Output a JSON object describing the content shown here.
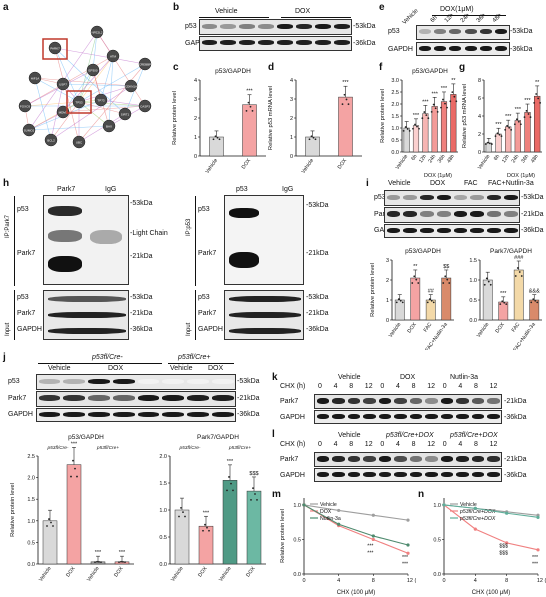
{
  "panels": {
    "a": {
      "label": "a"
    },
    "b": {
      "label": "b",
      "groups": [
        "Vehicle",
        "DOX"
      ],
      "rows": [
        "p53",
        "GAPDH"
      ],
      "kda": [
        "-53kDa",
        "-36kDa"
      ]
    },
    "c": {
      "label": "c",
      "ylabel": "Relative protein level",
      "title": "p53/GAPDH",
      "ticks": [
        "0",
        "1",
        "2",
        "3",
        "4"
      ],
      "cats": [
        "Vehicle",
        "DOX"
      ],
      "sig": "***"
    },
    "d": {
      "label": "d",
      "ylabel": "Relative p53 mRNA level",
      "ticks": [
        "0",
        "1",
        "2",
        "3",
        "4"
      ],
      "cats": [
        "Vehicle",
        "DOX"
      ],
      "sig": "***"
    },
    "e": {
      "label": "e",
      "groups": [
        "Vehicle",
        "DOX(1μM)"
      ],
      "times": [
        "6h",
        "12h",
        "24h",
        "36h",
        "48h"
      ],
      "rows": [
        "p53",
        "GAPDH"
      ],
      "kda": [
        "-53kDa",
        "-36kDa"
      ]
    },
    "f": {
      "label": "f",
      "title": "p53/GAPDH",
      "ylabel": "Relative protein level",
      "ticks": [
        "0.0",
        "0.5",
        "1.0",
        "1.5",
        "2.0",
        "2.5",
        "3.0"
      ],
      "cats": [
        "Vehicle",
        "6h",
        "12h",
        "24h",
        "36h",
        "48h"
      ],
      "xlabel": "DOX (1μM)",
      "sig": [
        "***",
        "***",
        "***",
        "***",
        "**"
      ]
    },
    "g": {
      "label": "g",
      "ylabel": "Relative p53 mRNA level",
      "ticks": [
        "0",
        "2",
        "4",
        "6",
        "8"
      ],
      "cats": [
        "Vehicle",
        "6h",
        "12h",
        "24h",
        "36h",
        "48h"
      ],
      "xlabel": "DOX (1μM)",
      "sig": [
        "***",
        "***",
        "***",
        "***",
        "**"
      ]
    },
    "h": {
      "label": "h",
      "left": {
        "ip": "IP:Park7",
        "cols": [
          "Park7",
          "IgG"
        ],
        "rows": [
          "p53",
          "Park7"
        ],
        "kda": [
          "-53kDa",
          "-Light Chain",
          "-21kDa"
        ],
        "input": "Input",
        "input_rows": [
          "p53",
          "Park7",
          "GAPDH"
        ],
        "input_kda": [
          "-53kDa",
          "-21kDa",
          "-36kDa"
        ]
      },
      "right": {
        "ip": "IP:p53",
        "cols": [
          "p53",
          "IgG"
        ],
        "rows": [
          "p53",
          "Park7"
        ],
        "kda": [
          "-53kDa",
          "-21kDa"
        ],
        "input": "Input",
        "input_rows": [
          "p53",
          "Park7",
          "GAPDH"
        ],
        "input_kda": [
          "-53kDa",
          "-21kDa",
          "-36kDa"
        ]
      }
    },
    "i": {
      "label": "i",
      "groups": [
        "Vehicle",
        "DOX",
        "FAC",
        "FAC+Nutlin-3a"
      ],
      "rows": [
        "p53",
        "Park7",
        "GAPDH"
      ],
      "kda": [
        "-53kDa",
        "-21kDa",
        "-36kDa"
      ],
      "chart1": {
        "title": "p53/GAPDH",
        "ylabel": "Relative protein level",
        "ticks": [
          "0",
          "1",
          "2",
          "3"
        ],
        "cats": [
          "Vehicle",
          "DOX",
          "FAC",
          "FAC+Nutlin-3a"
        ],
        "sig": [
          "**",
          "##",
          "$$"
        ]
      },
      "chart2": {
        "title": "Park7/GAPDH",
        "ticks": [
          "0.0",
          "0.5",
          "1.0",
          "1.5"
        ],
        "cats": [
          "Vehicle",
          "DOX",
          "FAC",
          "FAC+Nutlin-3a"
        ],
        "sig": [
          "***",
          "###",
          "&&&"
        ]
      }
    },
    "j": {
      "label": "j",
      "g1": "p53fl/Cre-",
      "g2": "p53fl/Cre+",
      "groups": [
        "Vehicle",
        "DOX",
        "Vehicle",
        "DOX"
      ],
      "rows": [
        "p53",
        "Park7",
        "GAPDH"
      ],
      "kda": [
        "-53kDa",
        "-21kDa",
        "-36kDa"
      ],
      "chart1": {
        "title": "p53/GAPDH",
        "sub1": "p53fl/Cre-",
        "sub2": "p53fl/Cre+",
        "ylabel": "Relative protein level",
        "ticks": [
          "0.0",
          "0.5",
          "1.0",
          "1.5",
          "2.0",
          "2.5"
        ],
        "cats": [
          "Vehicle",
          "DOX",
          "Vehicle",
          "DOX"
        ],
        "sig": [
          "***",
          "***",
          "***",
          "$$$"
        ]
      },
      "chart2": {
        "title": "Park7/GAPDH",
        "sub1": "p53fl/Cre-",
        "sub2": "p53fl/Cre+",
        "ticks": [
          "0.0",
          "0.5",
          "1.0",
          "1.5",
          "2.0"
        ],
        "cats": [
          "Vehicle",
          "DOX",
          "Vehicle",
          "DOX"
        ],
        "sig": [
          "***",
          "***",
          "$$$"
        ]
      }
    },
    "k": {
      "label": "k",
      "chx": "CHX (h)",
      "groups": [
        "Vehicle",
        "DOX",
        "Nutlin-3a"
      ],
      "times": [
        "0",
        "4",
        "8",
        "12",
        "0",
        "4",
        "8",
        "12",
        "0",
        "4",
        "8",
        "12"
      ],
      "rows": [
        "Park7",
        "GAPDH"
      ],
      "kda": [
        "-21kDa",
        "-36kDa"
      ]
    },
    "l": {
      "label": "l",
      "chx": "CHX (h)",
      "groups": [
        "Vehicle",
        "p53fl/Cre+DOX",
        "p53fl/Cre+DOX"
      ],
      "times": [
        "0",
        "4",
        "8",
        "12",
        "0",
        "4",
        "8",
        "12",
        "0",
        "4",
        "8",
        "12"
      ],
      "rows": [
        "Park7",
        "GAPDH"
      ],
      "kda": [
        "-21kDa",
        "-36kDa"
      ]
    },
    "m": {
      "label": "m",
      "ylabel": "Relative protein level",
      "xlabel": "CHX (100 μM)",
      "xticks": [
        "0",
        "4",
        "8",
        "12 (h)"
      ],
      "yticks": [
        "0.0",
        "0.5",
        "1.0"
      ],
      "legend": [
        "Vehicle",
        "DOX",
        "Nutlin-3a"
      ],
      "colors": [
        "#9e9e9e",
        "#f08080",
        "#4e8a6e"
      ],
      "sig": [
        "***",
        "***",
        "***",
        "***"
      ]
    },
    "n": {
      "label": "n",
      "xlabel": "CHX (100 μM)",
      "xticks": [
        "0",
        "4",
        "8",
        "12 (h)"
      ],
      "yticks": [
        "0.0",
        "0.5",
        "1.0"
      ],
      "legend": [
        "Vehicle",
        "p53fl/Cre+DOX",
        "p53fl/Cre+DOX"
      ],
      "colors": [
        "#9e9e9e",
        "#f08080",
        "#5fae9a"
      ],
      "sig": [
        "$$$",
        "$$$",
        "***",
        "***"
      ]
    }
  },
  "network": {
    "nodes": [
      "TP53",
      "MDM2",
      "PARK7",
      "ATM",
      "CDKN1A",
      "BAX",
      "SIRT1",
      "EP300",
      "HIF1A",
      "FOXO3",
      "UBC",
      "CASP3",
      "BCL2",
      "NFE2L2",
      "CREBBP",
      "SUMO1",
      "USP7",
      "TP73"
    ],
    "highlighted": [
      "PARK7",
      "TP53"
    ]
  },
  "chart_data": [
    {
      "panel": "c",
      "type": "bar",
      "categories": [
        "Vehicle",
        "DOX"
      ],
      "values": [
        1.0,
        2.7
      ],
      "ylim": [
        0,
        4
      ],
      "ylabel": "Relative protein level",
      "title": "p53/GAPDH"
    },
    {
      "panel": "d",
      "type": "bar",
      "categories": [
        "Vehicle",
        "DOX"
      ],
      "values": [
        1.0,
        3.1
      ],
      "ylim": [
        0,
        4
      ],
      "ylabel": "Relative p53 mRNA level"
    },
    {
      "panel": "f",
      "type": "bar",
      "categories": [
        "Vehicle",
        "6h",
        "12h",
        "24h",
        "36h",
        "48h"
      ],
      "values": [
        1.0,
        1.1,
        1.6,
        1.9,
        2.1,
        2.4
      ],
      "ylim": [
        0,
        3
      ],
      "title": "p53/GAPDH",
      "ylabel": "Relative protein level",
      "xlabel": "DOX (1μM)"
    },
    {
      "panel": "g",
      "type": "bar",
      "categories": [
        "Vehicle",
        "6h",
        "12h",
        "24h",
        "36h",
        "48h"
      ],
      "values": [
        1.0,
        2.0,
        2.8,
        3.5,
        4.4,
        6.2
      ],
      "ylim": [
        0,
        8
      ],
      "ylabel": "Relative p53 mRNA level",
      "xlabel": "DOX (1μM)"
    },
    {
      "panel": "i1",
      "type": "bar",
      "categories": [
        "Vehicle",
        "DOX",
        "FAC",
        "FAC+Nutlin-3a"
      ],
      "values": [
        1.0,
        2.1,
        1.0,
        2.1
      ],
      "ylim": [
        0,
        3
      ],
      "title": "p53/GAPDH",
      "ylabel": "Relative protein level"
    },
    {
      "panel": "i2",
      "type": "bar",
      "categories": [
        "Vehicle",
        "DOX",
        "FAC",
        "FAC+Nutlin-3a"
      ],
      "values": [
        1.0,
        0.45,
        1.25,
        0.5
      ],
      "ylim": [
        0,
        1.5
      ],
      "title": "Park7/GAPDH"
    },
    {
      "panel": "j1",
      "type": "bar",
      "categories": [
        "Vehicle",
        "DOX",
        "Vehicle",
        "DOX"
      ],
      "values": [
        1.0,
        2.3,
        0.05,
        0.05
      ],
      "ylim": [
        0,
        2.5
      ],
      "title": "p53/GAPDH",
      "ylabel": "Relative protein level"
    },
    {
      "panel": "j2",
      "type": "bar",
      "categories": [
        "Vehicle",
        "DOX",
        "Vehicle",
        "DOX"
      ],
      "values": [
        1.0,
        0.7,
        1.55,
        1.35
      ],
      "ylim": [
        0,
        2
      ],
      "title": "Park7/GAPDH"
    },
    {
      "panel": "m",
      "type": "line",
      "x": [
        0,
        4,
        8,
        12
      ],
      "series": [
        {
          "name": "Vehicle",
          "values": [
            1.0,
            0.92,
            0.85,
            0.78
          ]
        },
        {
          "name": "DOX",
          "values": [
            1.0,
            0.7,
            0.5,
            0.3
          ]
        },
        {
          "name": "Nutlin-3a",
          "values": [
            1.0,
            0.72,
            0.55,
            0.42
          ]
        }
      ],
      "ylim": [
        0,
        1.1
      ],
      "ylabel": "Relative protein level",
      "xlabel": "CHX (100 μM)"
    },
    {
      "panel": "n",
      "type": "line",
      "x": [
        0,
        4,
        8,
        12
      ],
      "series": [
        {
          "name": "Vehicle",
          "values": [
            1.0,
            0.95,
            0.9,
            0.85
          ]
        },
        {
          "name": "p53fl/Cre+DOX",
          "values": [
            1.0,
            0.65,
            0.45,
            0.35
          ]
        },
        {
          "name": "p53fl/Cre+DOX",
          "values": [
            1.0,
            0.95,
            0.88,
            0.82
          ]
        }
      ],
      "ylim": [
        0,
        1.1
      ],
      "xlabel": "CHX (100 μM)"
    }
  ]
}
